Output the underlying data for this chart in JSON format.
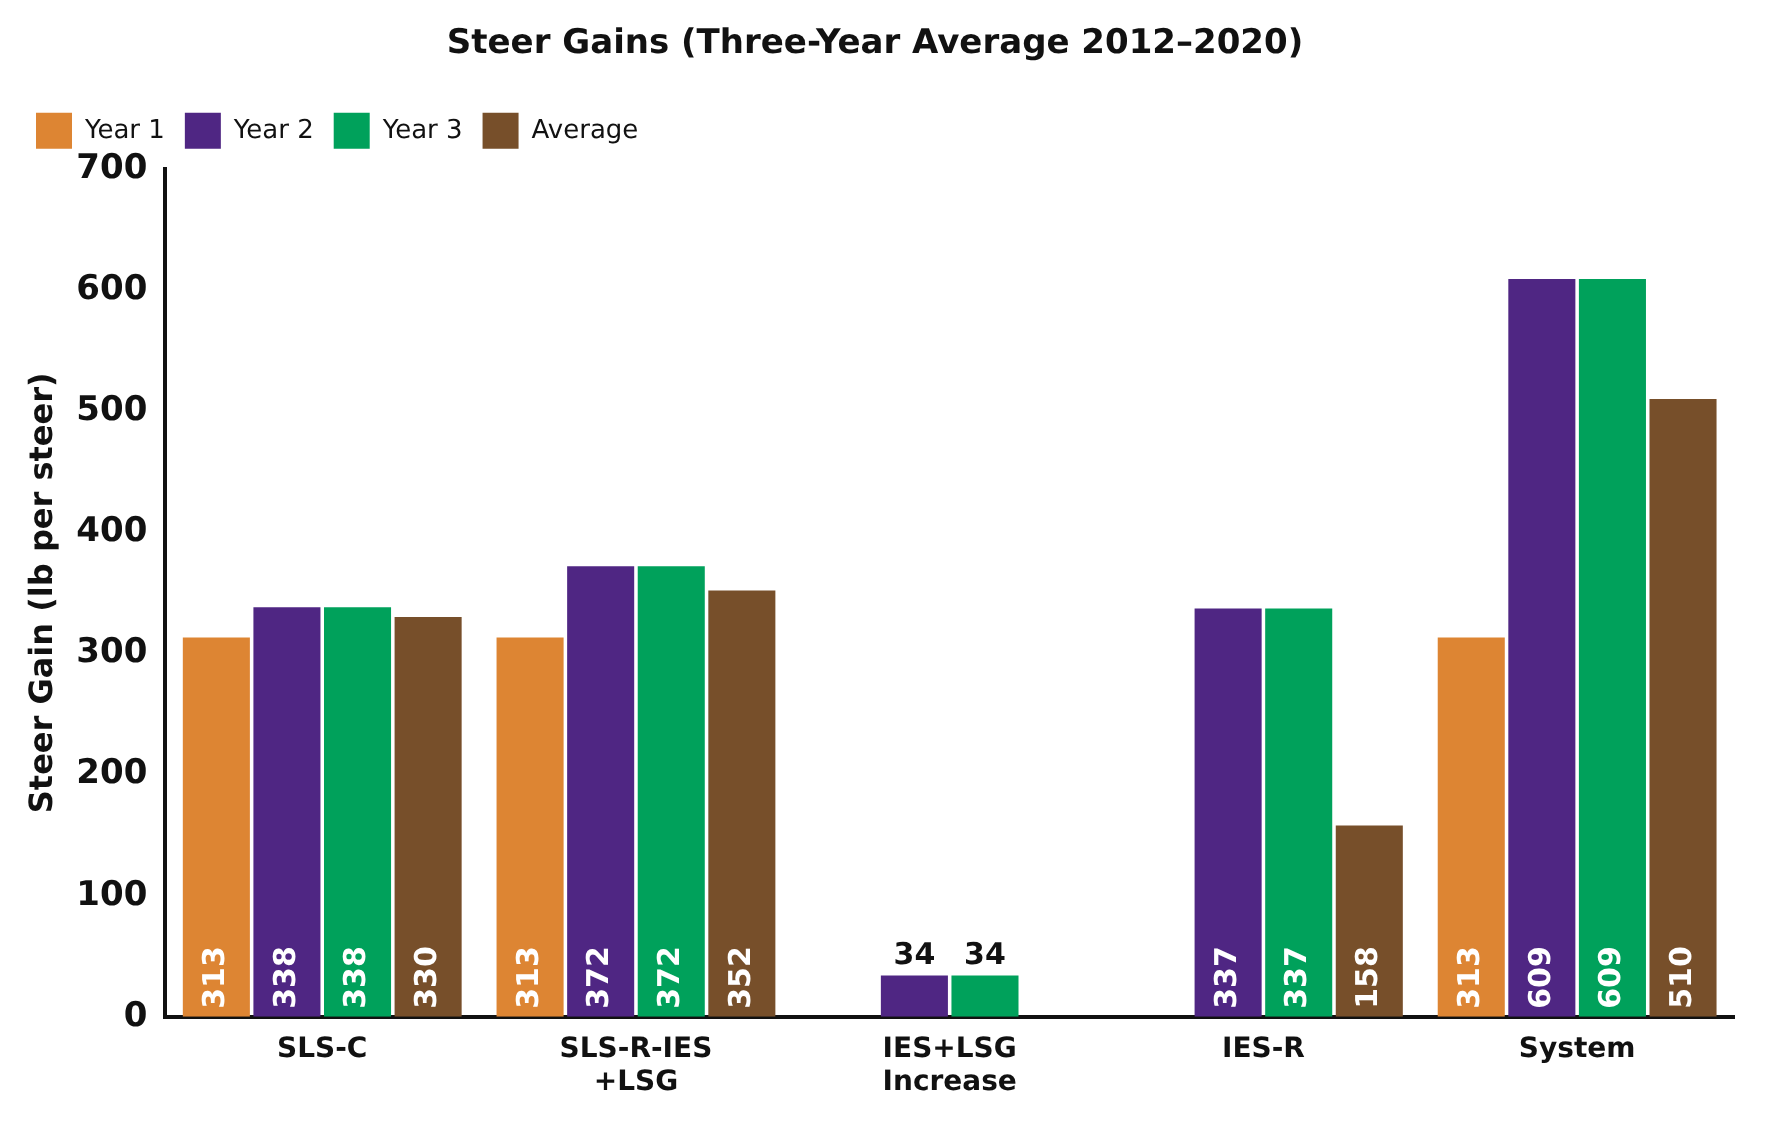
{
  "chart_data": {
    "type": "bar",
    "title": "Steer Gains (Three-Year Average 2012–2020)",
    "ylabel": "Steer Gain (lb per steer)",
    "categories": [
      "SLS-C",
      "SLS-R-IES +LSG",
      "IES+LSG Increase",
      "IES-R",
      "System"
    ],
    "series": [
      {
        "name": "Year 1",
        "color": "#dd8533",
        "values": [
          313,
          313,
          null,
          null,
          313
        ]
      },
      {
        "name": "Year 2",
        "color": "#4f2683",
        "values": [
          338,
          372,
          34,
          337,
          609
        ]
      },
      {
        "name": "Year 3",
        "color": "#00a15b",
        "values": [
          338,
          372,
          34,
          337,
          609
        ]
      },
      {
        "name": "Average",
        "color": "#774f2a",
        "values": [
          330,
          352,
          null,
          158,
          510
        ]
      }
    ],
    "ylim": [
      0,
      700
    ],
    "yticks": [
      0,
      100,
      200,
      300,
      400,
      500,
      600,
      700
    ],
    "grid": false,
    "legend": "top left",
    "data_labels": true
  }
}
